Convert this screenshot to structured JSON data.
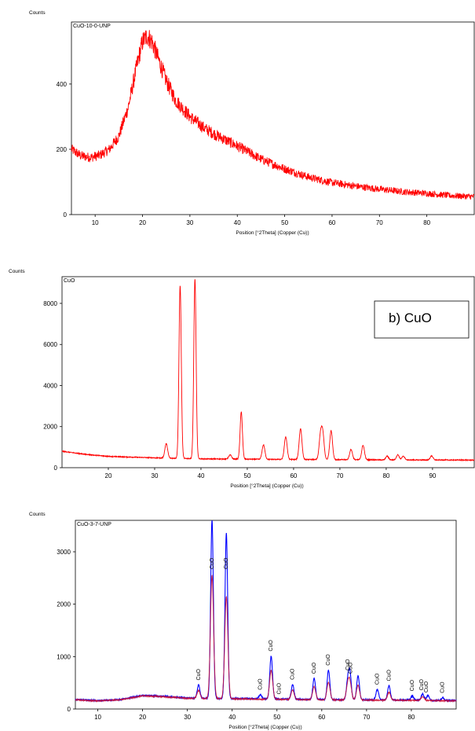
{
  "chart_data": [
    {
      "type": "line",
      "sample_label": "CuO-10-0-UNP",
      "ylabel": "Counts",
      "xlabel": "Position [°2Theta] (Copper (Cu))",
      "xlim": [
        5,
        90
      ],
      "ylim": [
        0,
        590
      ],
      "xticks": [
        10,
        20,
        30,
        40,
        50,
        60,
        70,
        80
      ],
      "yticks": [
        0,
        200,
        400
      ],
      "series": [
        {
          "color": "#ff0000",
          "x": [
            5,
            7,
            9,
            11,
            13,
            15,
            17,
            19,
            20,
            21,
            22,
            23,
            24,
            25,
            27,
            30,
            33,
            36,
            40,
            45,
            50,
            55,
            60,
            65,
            70,
            75,
            80,
            85,
            90
          ],
          "y": [
            200,
            180,
            175,
            182,
            200,
            240,
            330,
            470,
            530,
            548,
            530,
            490,
            450,
            410,
            350,
            300,
            265,
            240,
            210,
            170,
            140,
            115,
            98,
            87,
            78,
            70,
            65,
            58,
            55
          ]
        }
      ]
    },
    {
      "type": "line",
      "sample_label": "CuO",
      "legend_box": "b) CuO",
      "ylabel": "Counts",
      "xlabel": "Position [°2Theta] (Copper (Cu))",
      "xlim": [
        10,
        99
      ],
      "ylim": [
        0,
        9300
      ],
      "xticks": [
        20,
        30,
        40,
        50,
        60,
        70,
        80,
        90
      ],
      "yticks": [
        0,
        2000,
        4000,
        6000,
        8000
      ],
      "background": [
        [
          10,
          800
        ],
        [
          15,
          650
        ],
        [
          20,
          550
        ],
        [
          30,
          480
        ],
        [
          40,
          430
        ],
        [
          60,
          400
        ],
        [
          80,
          380
        ],
        [
          99,
          370
        ]
      ],
      "peaks": [
        {
          "x": 32.5,
          "height": 700,
          "width": 0.3
        },
        {
          "x": 35.5,
          "height": 8400,
          "width": 0.25
        },
        {
          "x": 38.7,
          "height": 8750,
          "width": 0.25
        },
        {
          "x": 46.3,
          "height": 200,
          "width": 0.3
        },
        {
          "x": 48.7,
          "height": 2300,
          "width": 0.25
        },
        {
          "x": 53.5,
          "height": 700,
          "width": 0.3
        },
        {
          "x": 58.3,
          "height": 1100,
          "width": 0.3
        },
        {
          "x": 61.5,
          "height": 1500,
          "width": 0.3
        },
        {
          "x": 65.8,
          "height": 1100,
          "width": 0.3
        },
        {
          "x": 66.3,
          "height": 1200,
          "width": 0.3
        },
        {
          "x": 68.1,
          "height": 1400,
          "width": 0.3
        },
        {
          "x": 72.4,
          "height": 500,
          "width": 0.3
        },
        {
          "x": 75.0,
          "height": 700,
          "width": 0.3
        },
        {
          "x": 80.2,
          "height": 180,
          "width": 0.3
        },
        {
          "x": 82.5,
          "height": 250,
          "width": 0.3
        },
        {
          "x": 83.7,
          "height": 180,
          "width": 0.3
        },
        {
          "x": 89.8,
          "height": 200,
          "width": 0.3
        }
      ],
      "series": [
        {
          "color": "#ff0000"
        }
      ]
    },
    {
      "type": "line",
      "sample_label": "CuO-3-7-UNP",
      "ylabel": "Counts",
      "xlabel": "Position [°2Theta] (Copper (Cu))",
      "xlim": [
        5,
        90
      ],
      "ylim": [
        0,
        3600
      ],
      "xticks": [
        10,
        20,
        30,
        40,
        50,
        60,
        70,
        80
      ],
      "yticks": [
        0,
        1000,
        2000,
        3000
      ],
      "background": [
        [
          5,
          180
        ],
        [
          10,
          160
        ],
        [
          15,
          180
        ],
        [
          20,
          260
        ],
        [
          25,
          240
        ],
        [
          30,
          210
        ],
        [
          40,
          200
        ],
        [
          60,
          180
        ],
        [
          80,
          170
        ],
        [
          90,
          160
        ]
      ],
      "series": [
        {
          "color": "#0000ff",
          "peaks": [
            {
              "x": 32.5,
              "height": 250,
              "width": 0.3
            },
            {
              "x": 35.5,
              "height": 3400,
              "width": 0.3
            },
            {
              "x": 38.7,
              "height": 3150,
              "width": 0.3
            },
            {
              "x": 46.3,
              "height": 80,
              "width": 0.3
            },
            {
              "x": 48.7,
              "height": 820,
              "width": 0.3
            },
            {
              "x": 53.5,
              "height": 280,
              "width": 0.3
            },
            {
              "x": 58.3,
              "height": 400,
              "width": 0.3
            },
            {
              "x": 61.5,
              "height": 560,
              "width": 0.3
            },
            {
              "x": 65.8,
              "height": 350,
              "width": 0.3
            },
            {
              "x": 66.3,
              "height": 480,
              "width": 0.3
            },
            {
              "x": 68.1,
              "height": 460,
              "width": 0.3
            },
            {
              "x": 72.4,
              "height": 200,
              "width": 0.3
            },
            {
              "x": 75.0,
              "height": 270,
              "width": 0.3
            },
            {
              "x": 80.2,
              "height": 80,
              "width": 0.3
            },
            {
              "x": 82.5,
              "height": 120,
              "width": 0.3
            },
            {
              "x": 83.7,
              "height": 90,
              "width": 0.3
            },
            {
              "x": 87.0,
              "height": 50,
              "width": 0.3
            }
          ]
        },
        {
          "color": "#cc1133",
          "peaks": [
            {
              "x": 32.5,
              "height": 150,
              "width": 0.35
            },
            {
              "x": 35.5,
              "height": 2350,
              "width": 0.35
            },
            {
              "x": 38.7,
              "height": 1950,
              "width": 0.35
            },
            {
              "x": 48.7,
              "height": 550,
              "width": 0.35
            },
            {
              "x": 53.5,
              "height": 180,
              "width": 0.35
            },
            {
              "x": 58.3,
              "height": 250,
              "width": 0.35
            },
            {
              "x": 61.5,
              "height": 330,
              "width": 0.35
            },
            {
              "x": 65.8,
              "height": 260,
              "width": 0.35
            },
            {
              "x": 66.3,
              "height": 300,
              "width": 0.35
            },
            {
              "x": 68.1,
              "height": 280,
              "width": 0.35
            },
            {
              "x": 75.0,
              "height": 150,
              "width": 0.35
            },
            {
              "x": 82.5,
              "height": 70,
              "width": 0.35
            }
          ]
        }
      ],
      "peak_labels": [
        {
          "x": 32.5,
          "text": "CuO"
        },
        {
          "x": 35.5,
          "text": "CuO"
        },
        {
          "x": 38.7,
          "text": "CuO"
        },
        {
          "x": 46.3,
          "text": "CuO"
        },
        {
          "x": 48.7,
          "text": "CuO"
        },
        {
          "x": 50.5,
          "text": "CuO"
        },
        {
          "x": 53.5,
          "text": "CuO"
        },
        {
          "x": 58.3,
          "text": "CuO"
        },
        {
          "x": 61.5,
          "text": "CuO"
        },
        {
          "x": 65.8,
          "text": "CuO"
        },
        {
          "x": 66.5,
          "text": "CuO"
        },
        {
          "x": 72.4,
          "text": "CuO"
        },
        {
          "x": 75.0,
          "text": "CuO"
        },
        {
          "x": 80.2,
          "text": "CuO"
        },
        {
          "x": 82.3,
          "text": "CuO"
        },
        {
          "x": 83.4,
          "text": "CuO"
        },
        {
          "x": 87.0,
          "text": "CuO"
        }
      ]
    }
  ]
}
